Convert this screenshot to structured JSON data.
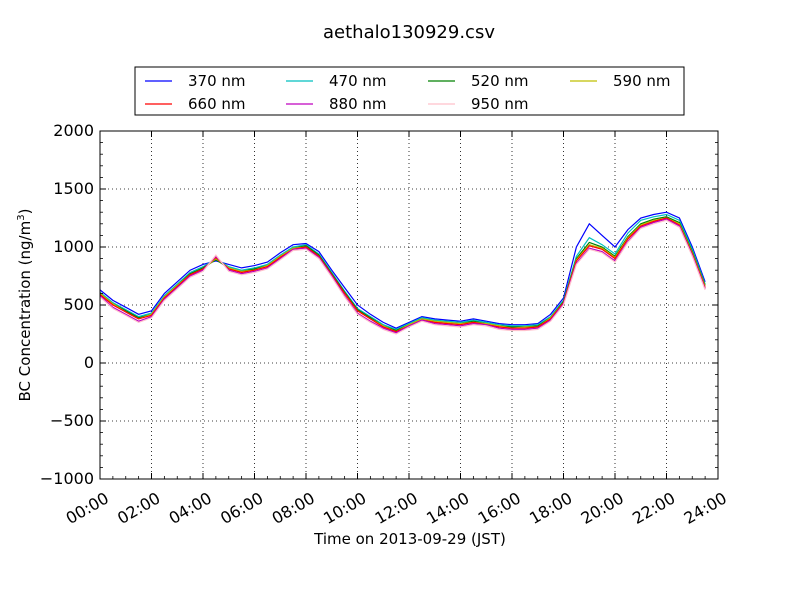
{
  "chart_data": {
    "type": "line",
    "title": "aethalo130929.csv",
    "xlabel": "Time on 2013-09-29 (JST)",
    "ylabel": "BC Concentration (ng/m³)",
    "ylabel_parts": {
      "main": "BC Concentration (ng/m",
      "sup": "3",
      "close": ")"
    },
    "xlim": [
      0,
      24
    ],
    "ylim": [
      -1000,
      2000
    ],
    "x_ticks": [
      0,
      2,
      4,
      6,
      8,
      10,
      12,
      14,
      16,
      18,
      20,
      22,
      24
    ],
    "x_tick_labels": [
      "00:00",
      "02:00",
      "04:00",
      "06:00",
      "08:00",
      "10:00",
      "12:00",
      "14:00",
      "16:00",
      "18:00",
      "20:00",
      "22:00",
      "24:00"
    ],
    "y_ticks": [
      -1000,
      -500,
      0,
      500,
      1000,
      1500,
      2000
    ],
    "y_tick_labels": [
      "−1000",
      "−500",
      "0",
      "500",
      "1000",
      "1500",
      "2000"
    ],
    "grid": true,
    "grid_style": "dotted",
    "legend_position": "top-center",
    "legend_columns": 4,
    "x": [
      0.0,
      0.5,
      1.0,
      1.5,
      2.0,
      2.5,
      3.0,
      3.5,
      4.0,
      4.5,
      5.0,
      5.5,
      6.0,
      6.5,
      7.0,
      7.5,
      8.0,
      8.5,
      9.0,
      9.5,
      10.0,
      10.5,
      11.0,
      11.5,
      12.0,
      12.5,
      13.0,
      13.5,
      14.0,
      14.5,
      15.0,
      15.5,
      16.0,
      16.5,
      17.0,
      17.5,
      18.0,
      18.5,
      19.0,
      19.5,
      20.0,
      20.5,
      21.0,
      21.5,
      22.0,
      22.5,
      23.0,
      23.5
    ],
    "series": [
      {
        "name": "370 nm",
        "color": "#0000ff",
        "values": [
          630,
          540,
          480,
          420,
          450,
          600,
          700,
          800,
          850,
          880,
          850,
          820,
          840,
          870,
          950,
          1020,
          1030,
          960,
          800,
          650,
          500,
          420,
          350,
          300,
          350,
          400,
          380,
          370,
          360,
          380,
          360,
          340,
          330,
          330,
          340,
          420,
          560,
          1000,
          1200,
          1100,
          1000,
          1150,
          1250,
          1280,
          1300,
          1250,
          1000,
          700
        ]
      },
      {
        "name": "470 nm",
        "color": "#00bfbf",
        "values": [
          610,
          520,
          460,
          400,
          430,
          580,
          680,
          780,
          830,
          900,
          830,
          800,
          820,
          850,
          930,
          1000,
          1020,
          940,
          780,
          620,
          470,
          400,
          330,
          290,
          340,
          390,
          370,
          360,
          350,
          370,
          350,
          330,
          320,
          320,
          330,
          400,
          540,
          920,
          1080,
          1020,
          940,
          1120,
          1230,
          1260,
          1280,
          1230,
          980,
          680
        ]
      },
      {
        "name": "520 nm",
        "color": "#008000",
        "values": [
          600,
          510,
          450,
          390,
          420,
          570,
          670,
          770,
          820,
          890,
          820,
          790,
          810,
          840,
          920,
          990,
          1010,
          930,
          770,
          610,
          460,
          390,
          320,
          280,
          330,
          380,
          360,
          350,
          340,
          360,
          340,
          320,
          310,
          310,
          320,
          390,
          530,
          900,
          1040,
          1000,
          920,
          1090,
          1200,
          1240,
          1260,
          1210,
          960,
          670
        ]
      },
      {
        "name": "590 nm",
        "color": "#bfbf00",
        "values": [
          600,
          510,
          440,
          380,
          420,
          570,
          670,
          760,
          810,
          900,
          820,
          790,
          800,
          840,
          920,
          990,
          1000,
          920,
          760,
          600,
          450,
          380,
          320,
          270,
          330,
          380,
          360,
          350,
          340,
          350,
          340,
          320,
          300,
          310,
          310,
          390,
          520,
          890,
          1020,
          990,
          910,
          1080,
          1190,
          1230,
          1250,
          1200,
          950,
          660
        ]
      },
      {
        "name": "660 nm",
        "color": "#ff0000",
        "values": [
          590,
          500,
          440,
          380,
          410,
          560,
          660,
          760,
          810,
          910,
          810,
          780,
          800,
          830,
          910,
          980,
          1000,
          920,
          760,
          600,
          450,
          380,
          310,
          270,
          320,
          370,
          350,
          340,
          330,
          350,
          330,
          310,
          300,
          300,
          310,
          380,
          520,
          880,
          1010,
          980,
          900,
          1070,
          1180,
          1220,
          1250,
          1190,
          940,
          650
        ]
      },
      {
        "name": "880 nm",
        "color": "#bf00bf",
        "values": [
          580,
          480,
          420,
          360,
          400,
          550,
          650,
          750,
          800,
          920,
          800,
          770,
          790,
          820,
          900,
          980,
          990,
          910,
          750,
          580,
          430,
          360,
          300,
          260,
          320,
          370,
          340,
          330,
          320,
          340,
          330,
          300,
          290,
          290,
          300,
          370,
          510,
          860,
          990,
          960,
          880,
          1050,
          1170,
          1210,
          1240,
          1180,
          930,
          640
        ]
      },
      {
        "name": "950 nm",
        "color": "#ffc0cb",
        "values": [
          570,
          470,
          410,
          350,
          390,
          540,
          640,
          740,
          790,
          930,
          790,
          760,
          780,
          810,
          890,
          970,
          980,
          900,
          740,
          570,
          420,
          350,
          290,
          250,
          310,
          360,
          330,
          320,
          310,
          330,
          320,
          290,
          280,
          280,
          290,
          360,
          500,
          850,
          980,
          950,
          870,
          1040,
          1160,
          1200,
          1230,
          1170,
          920,
          630
        ]
      }
    ]
  }
}
